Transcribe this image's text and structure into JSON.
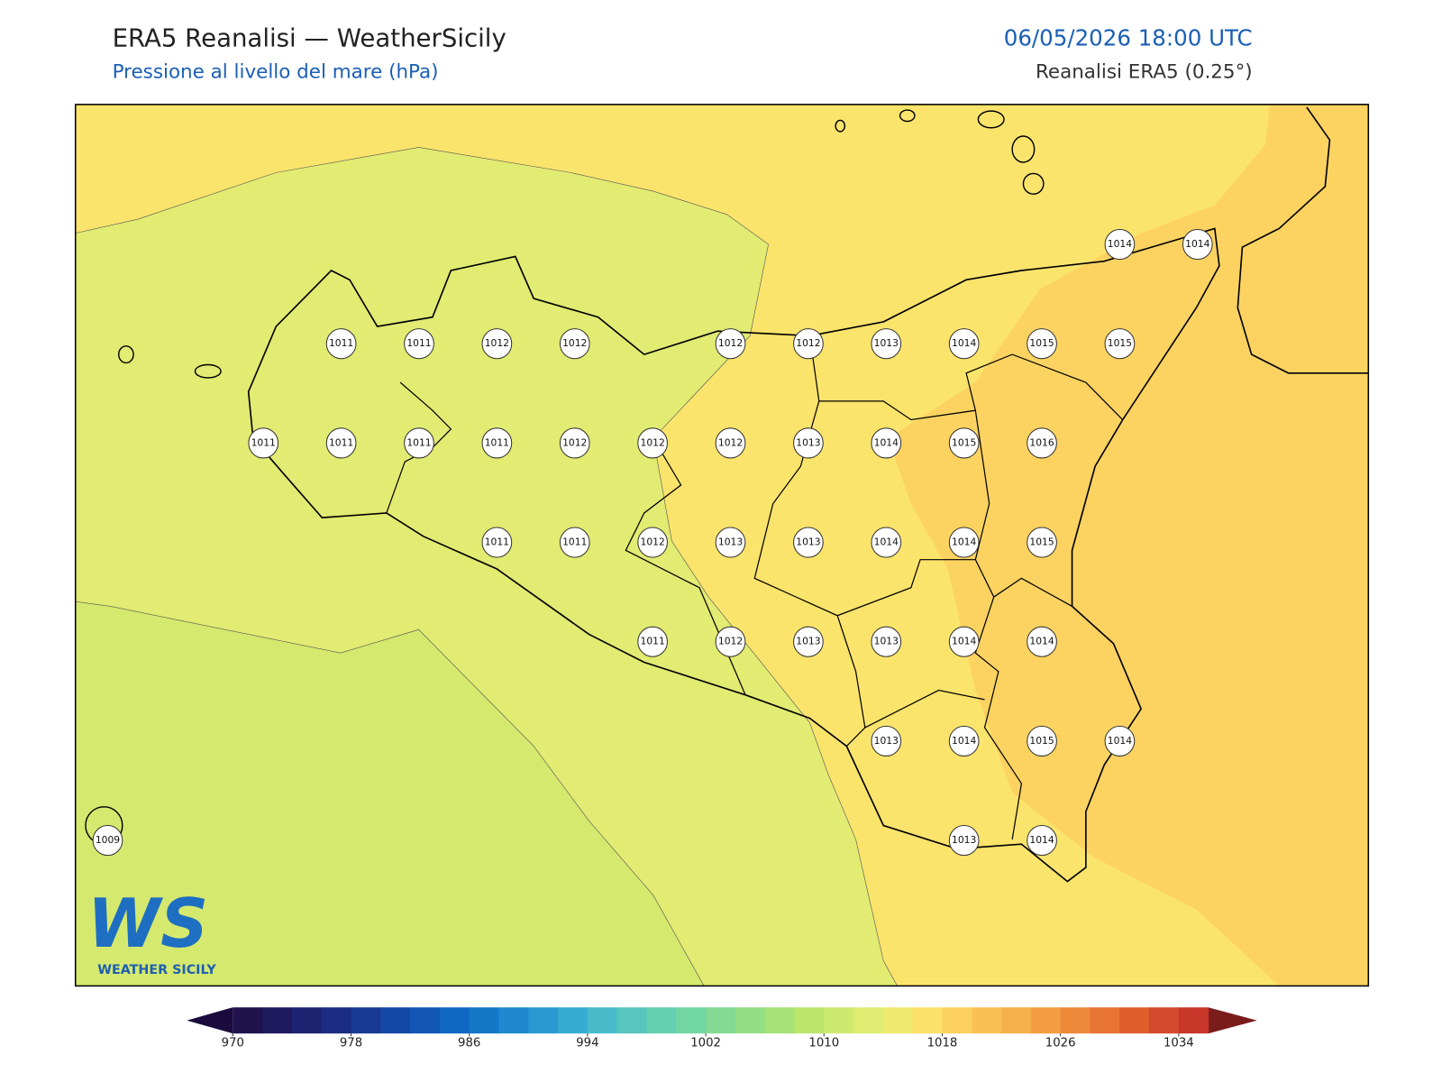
{
  "header": {
    "title": "ERA5 Reanalisi — WeatherSicily",
    "subtitle": "Pressione al livello del mare (hPa)",
    "datetime": "06/05/2026 18:00 UTC",
    "source": "Reanalisi ERA5 (0.25°)"
  },
  "pressure_grid": [
    [
      null,
      null,
      null,
      null,
      null,
      null,
      null,
      null,
      null,
      null,
      null,
      null,
      null,
      1014,
      1014
    ],
    [
      null,
      null,
      null,
      1011,
      1011,
      1012,
      1012,
      null,
      1012,
      1012,
      1013,
      1014,
      1015,
      1015,
      null
    ],
    [
      null,
      null,
      1011,
      1011,
      1011,
      1011,
      1012,
      1012,
      1012,
      1013,
      1014,
      1015,
      1016,
      null,
      null
    ],
    [
      null,
      null,
      null,
      null,
      null,
      1011,
      1011,
      1012,
      1013,
      1013,
      1014,
      1014,
      1015,
      null,
      null
    ],
    [
      null,
      null,
      null,
      null,
      null,
      null,
      null,
      1011,
      1012,
      1013,
      1013,
      1014,
      1014,
      null,
      null
    ],
    [
      null,
      null,
      null,
      null,
      null,
      null,
      null,
      null,
      null,
      null,
      1013,
      1014,
      1015,
      1014,
      null
    ],
    [
      1009,
      null,
      null,
      null,
      null,
      null,
      null,
      null,
      null,
      null,
      null,
      1013,
      1014,
      null,
      null
    ]
  ],
  "colorbar": {
    "lim": [
      970,
      1036
    ],
    "ticks": [
      970,
      978,
      986,
      994,
      1002,
      1010,
      1018,
      1026,
      1034
    ],
    "colors": [
      "#20124d",
      "#1f1a5e",
      "#1d2370",
      "#1b2c82",
      "#183a94",
      "#1548a6",
      "#1257b5",
      "#0f68c2",
      "#1478c9",
      "#1f89cf",
      "#2a99d2",
      "#38abd3",
      "#48bccb",
      "#57c6be",
      "#66cfb0",
      "#72d6a2",
      "#82da94",
      "#94de85",
      "#a6e276",
      "#bae66c",
      "#cdea6e",
      "#dfec72",
      "#f0e970",
      "#fbe06a",
      "#fbd060",
      "#f9c155",
      "#f6b04b",
      "#f39d42",
      "#ee8939",
      "#e87433",
      "#e05e2d",
      "#d44a2c",
      "#c8372a"
    ]
  },
  "logo": {
    "mark": "WS",
    "name": "WEATHER SICILY"
  }
}
